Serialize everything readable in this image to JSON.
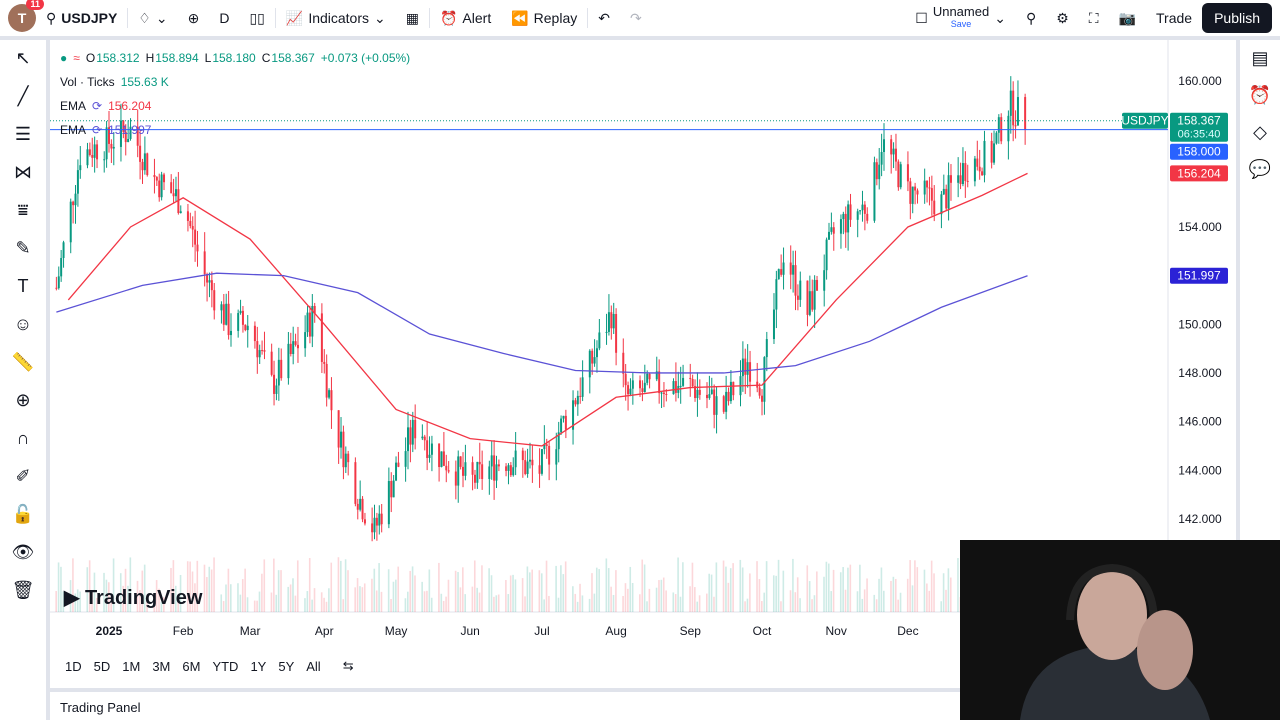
{
  "toolbar": {
    "avatar_letter": "T",
    "notification_count": "11",
    "symbol": "USDJPY",
    "interval": "D",
    "indicators": "Indicators",
    "alert": "Alert",
    "replay": "Replay",
    "layout_name": "Unnamed",
    "layout_status": "Save",
    "trade": "Trade",
    "publish": "Publish"
  },
  "legend": {
    "open_label": "O",
    "open": "158.312",
    "high_label": "H",
    "high": "158.894",
    "low_label": "L",
    "low": "158.180",
    "close_label": "C",
    "close": "158.367",
    "change": "+0.073 (+0.05%)",
    "vol_label": "Vol · Ticks",
    "vol": "155.63 K",
    "ema1_label": "EMA",
    "ema1": "156.204",
    "ema2_label": "EMA",
    "ema2": "151.997"
  },
  "price_scale": {
    "ticks": [
      "160.000",
      "158.000",
      "156.000",
      "154.000",
      "152.000",
      "150.000",
      "148.000",
      "146.000",
      "144.000",
      "142.000"
    ],
    "symbol_tag": "USDJPY",
    "last_price": "158.367",
    "countdown": "06:35:40",
    "line_price": "158.000",
    "ema1_tag": "156.204",
    "ema2_tag": "151.997"
  },
  "time_scale": [
    "2025",
    "Feb",
    "Mar",
    "Apr",
    "May",
    "Jun",
    "Jul",
    "Aug",
    "Sep",
    "Oct",
    "Nov",
    "Dec"
  ],
  "watermark": "TradingView",
  "ranges": [
    "1D",
    "5D",
    "1M",
    "3M",
    "6M",
    "YTD",
    "1Y",
    "5Y",
    "All"
  ],
  "trading_panel": "Trading Panel",
  "colors": {
    "up": "#089981",
    "down": "#f23645",
    "ema_fast": "#f23645",
    "ema_slow": "#5b52d6",
    "hline": "#2962ff"
  },
  "chart_data": {
    "type": "candlestick",
    "symbol": "USDJPY",
    "interval": "D",
    "horizontal_line": 158.0,
    "ylim": [
      141,
      161
    ],
    "approx_close_path": [
      [
        "2024-12-10",
        151.5
      ],
      [
        "2024-12-20",
        157
      ],
      [
        "2025-01-01",
        157.5
      ],
      [
        "2025-01-10",
        158
      ],
      [
        "2025-01-20",
        156
      ],
      [
        "2025-02-01",
        155
      ],
      [
        "2025-02-10",
        152
      ],
      [
        "2025-02-20",
        150
      ],
      [
        "2025-03-01",
        150
      ],
      [
        "2025-03-10",
        147.5
      ],
      [
        "2025-03-20",
        149
      ],
      [
        "2025-03-28",
        150.5
      ],
      [
        "2025-04-05",
        146
      ],
      [
        "2025-04-15",
        143
      ],
      [
        "2025-04-22",
        141.5
      ],
      [
        "2025-05-01",
        144
      ],
      [
        "2025-05-10",
        146
      ],
      [
        "2025-05-15",
        145
      ],
      [
        "2025-06-01",
        143.5
      ],
      [
        "2025-06-15",
        144.5
      ],
      [
        "2025-06-30",
        144
      ],
      [
        "2025-07-10",
        146
      ],
      [
        "2025-07-20",
        148
      ],
      [
        "2025-07-30",
        150.5
      ],
      [
        "2025-08-05",
        147
      ],
      [
        "2025-08-20",
        147.5
      ],
      [
        "2025-09-01",
        147.5
      ],
      [
        "2025-09-15",
        146.5
      ],
      [
        "2025-09-25",
        148.5
      ],
      [
        "2025-10-01",
        147.5
      ],
      [
        "2025-10-10",
        153
      ],
      [
        "2025-10-20",
        150.5
      ],
      [
        "2025-11-01",
        154
      ],
      [
        "2025-11-15",
        155
      ],
      [
        "2025-11-20",
        157.5
      ],
      [
        "2025-12-01",
        155.5
      ],
      [
        "2025-12-15",
        155
      ],
      [
        "2025-12-25",
        156.5
      ],
      [
        "2026-01-05",
        157
      ],
      [
        "2026-01-12",
        159
      ],
      [
        "2026-01-20",
        158.367
      ]
    ],
    "ema_fast": [
      [
        "2024-12-15",
        151
      ],
      [
        "2025-01-10",
        154
      ],
      [
        "2025-02-01",
        155.2
      ],
      [
        "2025-03-01",
        153.5
      ],
      [
        "2025-04-01",
        150
      ],
      [
        "2025-05-01",
        146.5
      ],
      [
        "2025-06-01",
        145.3
      ],
      [
        "2025-07-01",
        145
      ],
      [
        "2025-08-01",
        147
      ],
      [
        "2025-09-01",
        147.4
      ],
      [
        "2025-10-01",
        147.5
      ],
      [
        "2025-11-01",
        151
      ],
      [
        "2025-12-01",
        154
      ],
      [
        "2026-01-01",
        155.3
      ],
      [
        "2026-01-20",
        156.204
      ]
    ],
    "ema_slow": [
      [
        "2024-12-10",
        150.5
      ],
      [
        "2025-01-15",
        151.6
      ],
      [
        "2025-02-15",
        152.1
      ],
      [
        "2025-03-15",
        152
      ],
      [
        "2025-04-15",
        151.3
      ],
      [
        "2025-05-15",
        149.6
      ],
      [
        "2025-06-15",
        148.8
      ],
      [
        "2025-07-15",
        148.1
      ],
      [
        "2025-08-15",
        148
      ],
      [
        "2025-09-15",
        148
      ],
      [
        "2025-10-15",
        148.3
      ],
      [
        "2025-11-15",
        149.3
      ],
      [
        "2025-12-15",
        150.7
      ],
      [
        "2026-01-20",
        151.997
      ]
    ]
  }
}
